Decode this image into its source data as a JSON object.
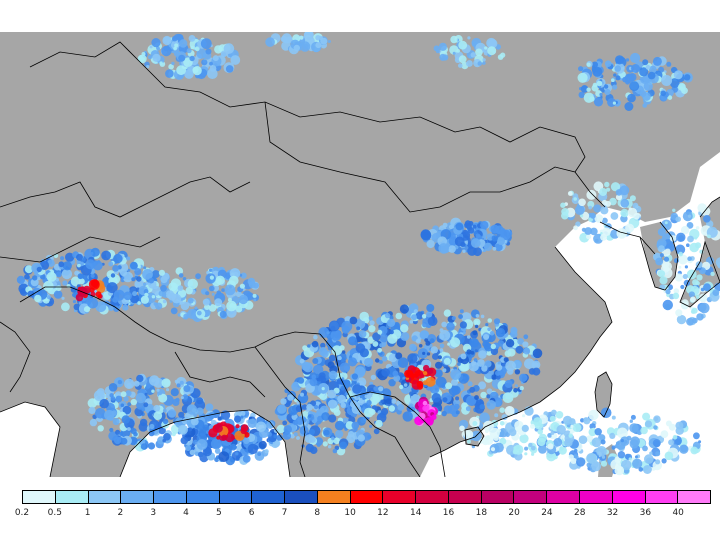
{
  "map": {
    "land_color": "#a6a6a6",
    "sea_color": "#ffffff",
    "border_color": "#000000",
    "precip_colors": [
      "#dff7fb",
      "#a9ecf5",
      "#8cc7f6",
      "#6aaef3",
      "#4d96ef",
      "#3b87ea",
      "#2e73e0",
      "#1f62d2",
      "#1a4fbe",
      "#f4801f",
      "#ff0000",
      "#e8002a",
      "#d3003f",
      "#c7004f",
      "#b90063",
      "#c3007d",
      "#de00a4",
      "#ef00c7",
      "#ff00e6",
      "#ff3ef2",
      "#ff7af8"
    ]
  },
  "legend": {
    "colors": [
      "#dff7fb",
      "#a9ecf5",
      "#8cc7f6",
      "#6aaef3",
      "#4d96ef",
      "#3b87ea",
      "#2e73e0",
      "#1f62d2",
      "#1a4fbe",
      "#f4801f",
      "#ff0000",
      "#e8002a",
      "#d3003f",
      "#c7004f",
      "#b90063",
      "#c3007d",
      "#de00a4",
      "#ef00c7",
      "#ff00e6",
      "#ff3ef2",
      "#ff7af8"
    ],
    "ticks": [
      "0.2",
      "0.5",
      "1",
      "2",
      "3",
      "4",
      "5",
      "6",
      "7",
      "8",
      "10",
      "12",
      "14",
      "16",
      "18",
      "20",
      "24",
      "28",
      "32",
      "36",
      "40"
    ]
  }
}
